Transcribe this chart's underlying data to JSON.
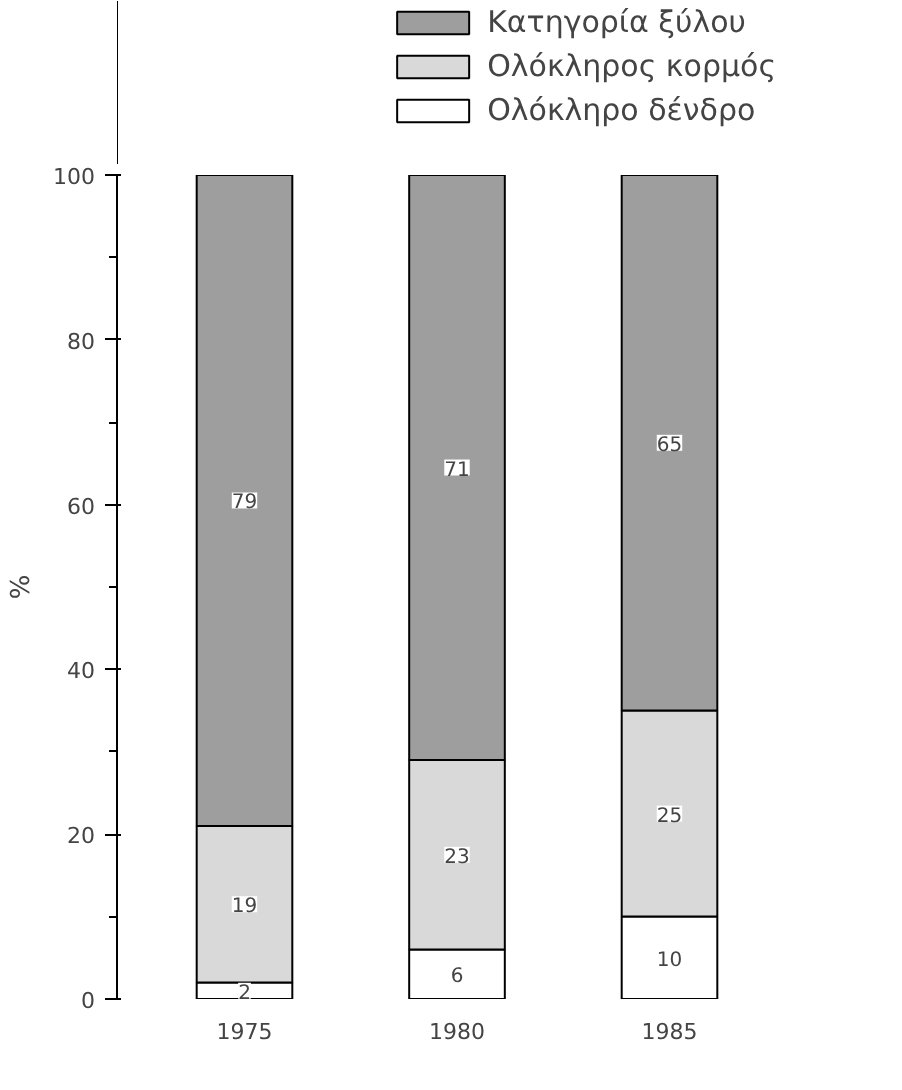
{
  "chart_data": {
    "type": "bar",
    "stacked": true,
    "ylabel": "%",
    "categories": [
      "1975",
      "1980",
      "1985"
    ],
    "series": [
      {
        "name": "Ολόκληρο δένδρο",
        "color": "#ffffff",
        "values": [
          2,
          6,
          10
        ]
      },
      {
        "name": "Ολόκληρος κορμός",
        "color": "#d9d9d9",
        "values": [
          19,
          23,
          25
        ]
      },
      {
        "name": "Κατηγορία ξύλου",
        "color": "#9e9e9e",
        "values": [
          79,
          71,
          65
        ]
      }
    ],
    "ylim": [
      0,
      100
    ],
    "yticks": [
      0,
      20,
      40,
      60,
      80,
      100
    ],
    "data_labels": true,
    "legend": "top",
    "grid": false
  }
}
